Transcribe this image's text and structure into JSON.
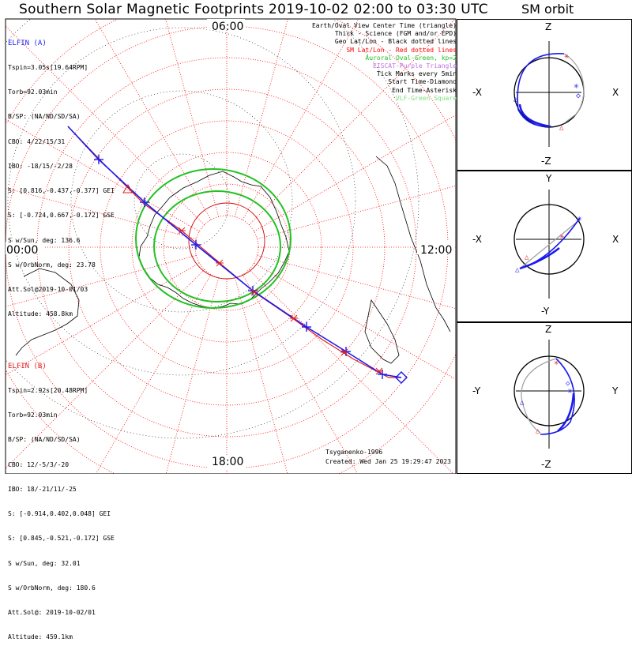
{
  "title": "Southern Solar Magnetic Footprints 2019-10-02 02:00 to 03:30 UTC",
  "orbit_title": "SM orbit",
  "clock_labels": {
    "top": "06:00",
    "left": "00:00",
    "right": "12:00",
    "bottom": "18:00"
  },
  "elfin_a": {
    "name": "ELFIN (A)",
    "lines": [
      "Tspin=3.05s[19.64RPM]",
      "Torb=92.03min",
      "B/SP: (NA/ND/SD/SA)",
      "CBO: 4/22/15/31",
      "IBO: -18/15/-2/28",
      "S: [0.816,-0.437,-0.377] GEI",
      "S: [-0.724,0.667,-0.172] GSE",
      "S w/Sun, deg: 136.6",
      "S w/OrbNorm, deg: 23.78",
      "Att.Sol@2019-10-01/03",
      "Altitude: 458.8km"
    ]
  },
  "elfin_b": {
    "name": "ELFIN (B)",
    "lines": [
      "Tspin=2.92s[20.48RPM]",
      "Torb=92.03min",
      "B/SP: (NA/ND/SD/SA)",
      "CBO: 12/-5/3/-20",
      "IBO: 18/-21/11/-25",
      "S: [-0.914,0.402,0.048] GEI",
      "S: [0.845,-0.521,-0.172] GSE",
      "S w/Sun, deg: 32.01",
      "S w/OrbNorm, deg: 180.6",
      "Att.Sol@: 2019-10-02/01",
      "Altitude: 459.1km"
    ]
  },
  "legend": [
    {
      "text": "Earth/Oval View Center Time (triangle)",
      "color": "#000000"
    },
    {
      "text": "Thick - Science (FGM and/or EPD)",
      "color": "#000000"
    },
    {
      "text": "Geo Lat/Lon - Black dotted lines",
      "color": "#000000"
    },
    {
      "text": "SM Lat/Lon - Red dotted lines",
      "color": "#ff0000"
    },
    {
      "text": "Auroral Oval-Green, kp=2",
      "color": "#22c122"
    },
    {
      "text": "EISCAT-Purple Triangle",
      "color": "#c070e0"
    },
    {
      "text": "Tick Marks every 5min",
      "color": "#000000"
    },
    {
      "text": "Start Time-Diamond",
      "color": "#000000"
    },
    {
      "text": "End Time-Asterisk",
      "color": "#000000"
    },
    {
      "text": "VLF-Green Square",
      "color": "#7ee07e"
    }
  ],
  "footer": {
    "author": "Tsyganenko-1996",
    "created": "Created: Wed Jan 25 19:29:47 2023"
  },
  "orbit_panels": [
    {
      "top": "Z",
      "bottom": "-Z",
      "left": "-X",
      "right": "X"
    },
    {
      "top": "Y",
      "bottom": "-Y",
      "left": "-X",
      "right": "X"
    },
    {
      "top": "Z",
      "bottom": "-Z",
      "left": "-Y",
      "right": "Y"
    }
  ],
  "colors": {
    "elfin_a": "#1a1af0",
    "elfin_b": "#e02020",
    "oval": "#22c122",
    "sm_grid": "#ff0000",
    "b_orbit": "#a0a0a0"
  }
}
